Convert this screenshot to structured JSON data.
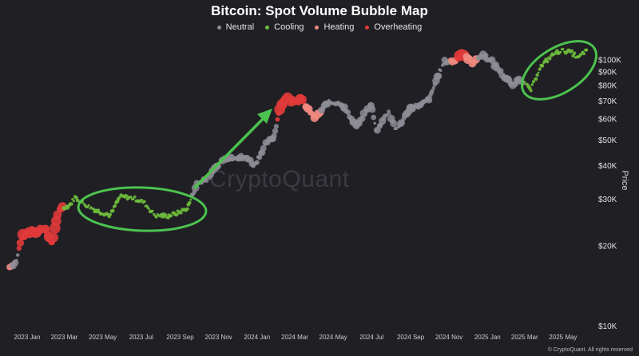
{
  "colors": {
    "background": "#1f1f24",
    "neutral": "#8e8d96",
    "cooling": "#6fbe3c",
    "heating": "#f08a80",
    "overheating": "#e03a3a",
    "annotation": "#4cc24f"
  },
  "watermark": "CryptoQuant",
  "copyright": "© CryptoQuant. All rights reserved",
  "chart_data": {
    "type": "scatter",
    "title": "Bitcoin: Spot Volume Bubble Map",
    "ylabel": "Price",
    "yscale": "log",
    "ylim": [
      10000,
      120000
    ],
    "xlim": [
      "2023-01-01",
      "2025-07-15"
    ],
    "x_ticks": [
      {
        "date": "2023-01-01",
        "label": "2023 Jan"
      },
      {
        "date": "2023-03-01",
        "label": "2023 Mar"
      },
      {
        "date": "2023-05-01",
        "label": "2023 May"
      },
      {
        "date": "2023-07-01",
        "label": "2023 Jul"
      },
      {
        "date": "2023-09-01",
        "label": "2023 Sep"
      },
      {
        "date": "2023-11-01",
        "label": "2023 Nov"
      },
      {
        "date": "2024-01-01",
        "label": "2024 Jan"
      },
      {
        "date": "2024-03-01",
        "label": "2024 Mar"
      },
      {
        "date": "2024-05-01",
        "label": "2024 May"
      },
      {
        "date": "2024-07-01",
        "label": "2024 Jul"
      },
      {
        "date": "2024-09-01",
        "label": "2024 Sep"
      },
      {
        "date": "2024-11-01",
        "label": "2024 Nov"
      },
      {
        "date": "2025-01-01",
        "label": "2025 Jan"
      },
      {
        "date": "2025-03-01",
        "label": "2025 Mar"
      },
      {
        "date": "2025-05-01",
        "label": "2025 May"
      }
    ],
    "y_ticks": [
      {
        "value": 10000,
        "label": "$10K"
      },
      {
        "value": 20000,
        "label": "$20K"
      },
      {
        "value": 30000,
        "label": "$30K"
      },
      {
        "value": 40000,
        "label": "$40K"
      },
      {
        "value": 50000,
        "label": "$50K"
      },
      {
        "value": 60000,
        "label": "$60K"
      },
      {
        "value": 70000,
        "label": "$70K"
      },
      {
        "value": 80000,
        "label": "$80K"
      },
      {
        "value": 90000,
        "label": "$90K"
      },
      {
        "value": 100000,
        "label": "$100K"
      }
    ],
    "legend": [
      {
        "name": "Neutral",
        "color": "#8e8d96"
      },
      {
        "name": "Cooling",
        "color": "#6fbe3c"
      },
      {
        "name": "Heating",
        "color": "#f08a80"
      },
      {
        "name": "Overheating",
        "color": "#e03a3a"
      }
    ],
    "series": [
      {
        "date": "2023-01-01",
        "price": 16600,
        "state": "heating"
      },
      {
        "date": "2023-01-12",
        "price": 17500,
        "state": "neutral"
      },
      {
        "date": "2023-01-20",
        "price": 21500,
        "state": "overheating"
      },
      {
        "date": "2023-02-05",
        "price": 23000,
        "state": "overheating"
      },
      {
        "date": "2023-02-15",
        "price": 22500,
        "state": "overheating"
      },
      {
        "date": "2023-02-25",
        "price": 23400,
        "state": "overheating"
      },
      {
        "date": "2023-03-10",
        "price": 20300,
        "state": "overheating"
      },
      {
        "date": "2023-03-20",
        "price": 27500,
        "state": "overheating"
      },
      {
        "date": "2023-04-05",
        "price": 28200,
        "state": "cooling"
      },
      {
        "date": "2023-04-15",
        "price": 30300,
        "state": "cooling"
      },
      {
        "date": "2023-05-01",
        "price": 28500,
        "state": "cooling"
      },
      {
        "date": "2023-05-20",
        "price": 27000,
        "state": "cooling"
      },
      {
        "date": "2023-06-10",
        "price": 26000,
        "state": "cooling"
      },
      {
        "date": "2023-06-25",
        "price": 30500,
        "state": "cooling"
      },
      {
        "date": "2023-07-15",
        "price": 30200,
        "state": "cooling"
      },
      {
        "date": "2023-08-01",
        "price": 29200,
        "state": "cooling"
      },
      {
        "date": "2023-08-20",
        "price": 26000,
        "state": "cooling"
      },
      {
        "date": "2023-09-10",
        "price": 25800,
        "state": "cooling"
      },
      {
        "date": "2023-09-25",
        "price": 26500,
        "state": "cooling"
      },
      {
        "date": "2023-10-10",
        "price": 27500,
        "state": "cooling"
      },
      {
        "date": "2023-10-25",
        "price": 34000,
        "state": "neutral"
      },
      {
        "date": "2023-11-15",
        "price": 36500,
        "state": "neutral"
      },
      {
        "date": "2023-12-05",
        "price": 42000,
        "state": "neutral"
      },
      {
        "date": "2023-12-25",
        "price": 43000,
        "state": "neutral"
      },
      {
        "date": "2024-01-15",
        "price": 42500,
        "state": "neutral"
      },
      {
        "date": "2024-01-25",
        "price": 40000,
        "state": "neutral"
      },
      {
        "date": "2024-02-10",
        "price": 47500,
        "state": "neutral"
      },
      {
        "date": "2024-02-25",
        "price": 51500,
        "state": "neutral"
      },
      {
        "date": "2024-03-05",
        "price": 66000,
        "state": "overheating"
      },
      {
        "date": "2024-03-14",
        "price": 72000,
        "state": "overheating"
      },
      {
        "date": "2024-03-25",
        "price": 70000,
        "state": "overheating"
      },
      {
        "date": "2024-04-08",
        "price": 71000,
        "state": "overheating"
      },
      {
        "date": "2024-04-20",
        "price": 64000,
        "state": "heating"
      },
      {
        "date": "2024-05-01",
        "price": 60000,
        "state": "heating"
      },
      {
        "date": "2024-05-20",
        "price": 69000,
        "state": "neutral"
      },
      {
        "date": "2024-06-10",
        "price": 68500,
        "state": "neutral"
      },
      {
        "date": "2024-07-05",
        "price": 56000,
        "state": "neutral"
      },
      {
        "date": "2024-07-28",
        "price": 68000,
        "state": "neutral"
      },
      {
        "date": "2024-08-05",
        "price": 54000,
        "state": "neutral"
      },
      {
        "date": "2024-08-25",
        "price": 64000,
        "state": "neutral"
      },
      {
        "date": "2024-09-06",
        "price": 54000,
        "state": "neutral"
      },
      {
        "date": "2024-09-28",
        "price": 65500,
        "state": "neutral"
      },
      {
        "date": "2024-10-15",
        "price": 67000,
        "state": "neutral"
      },
      {
        "date": "2024-10-30",
        "price": 72000,
        "state": "neutral"
      },
      {
        "date": "2024-11-12",
        "price": 88000,
        "state": "neutral"
      },
      {
        "date": "2024-11-22",
        "price": 98000,
        "state": "neutral"
      },
      {
        "date": "2024-12-10",
        "price": 98500,
        "state": "heating"
      },
      {
        "date": "2024-12-17",
        "price": 106000,
        "state": "overheating"
      },
      {
        "date": "2025-01-05",
        "price": 98000,
        "state": "heating"
      },
      {
        "date": "2025-01-22",
        "price": 104000,
        "state": "neutral"
      },
      {
        "date": "2025-02-05",
        "price": 98000,
        "state": "neutral"
      },
      {
        "date": "2025-02-25",
        "price": 86000,
        "state": "neutral"
      },
      {
        "date": "2025-03-10",
        "price": 80000,
        "state": "neutral"
      },
      {
        "date": "2025-03-20",
        "price": 85000,
        "state": "neutral"
      },
      {
        "date": "2025-04-08",
        "price": 77000,
        "state": "cooling"
      },
      {
        "date": "2025-04-22",
        "price": 93000,
        "state": "cooling"
      },
      {
        "date": "2025-05-10",
        "price": 103000,
        "state": "cooling"
      },
      {
        "date": "2025-05-25",
        "price": 108000,
        "state": "cooling"
      },
      {
        "date": "2025-06-10",
        "price": 107000,
        "state": "cooling"
      },
      {
        "date": "2025-06-22",
        "price": 101000,
        "state": "cooling"
      },
      {
        "date": "2025-07-05",
        "price": 108500,
        "state": "cooling"
      }
    ]
  }
}
